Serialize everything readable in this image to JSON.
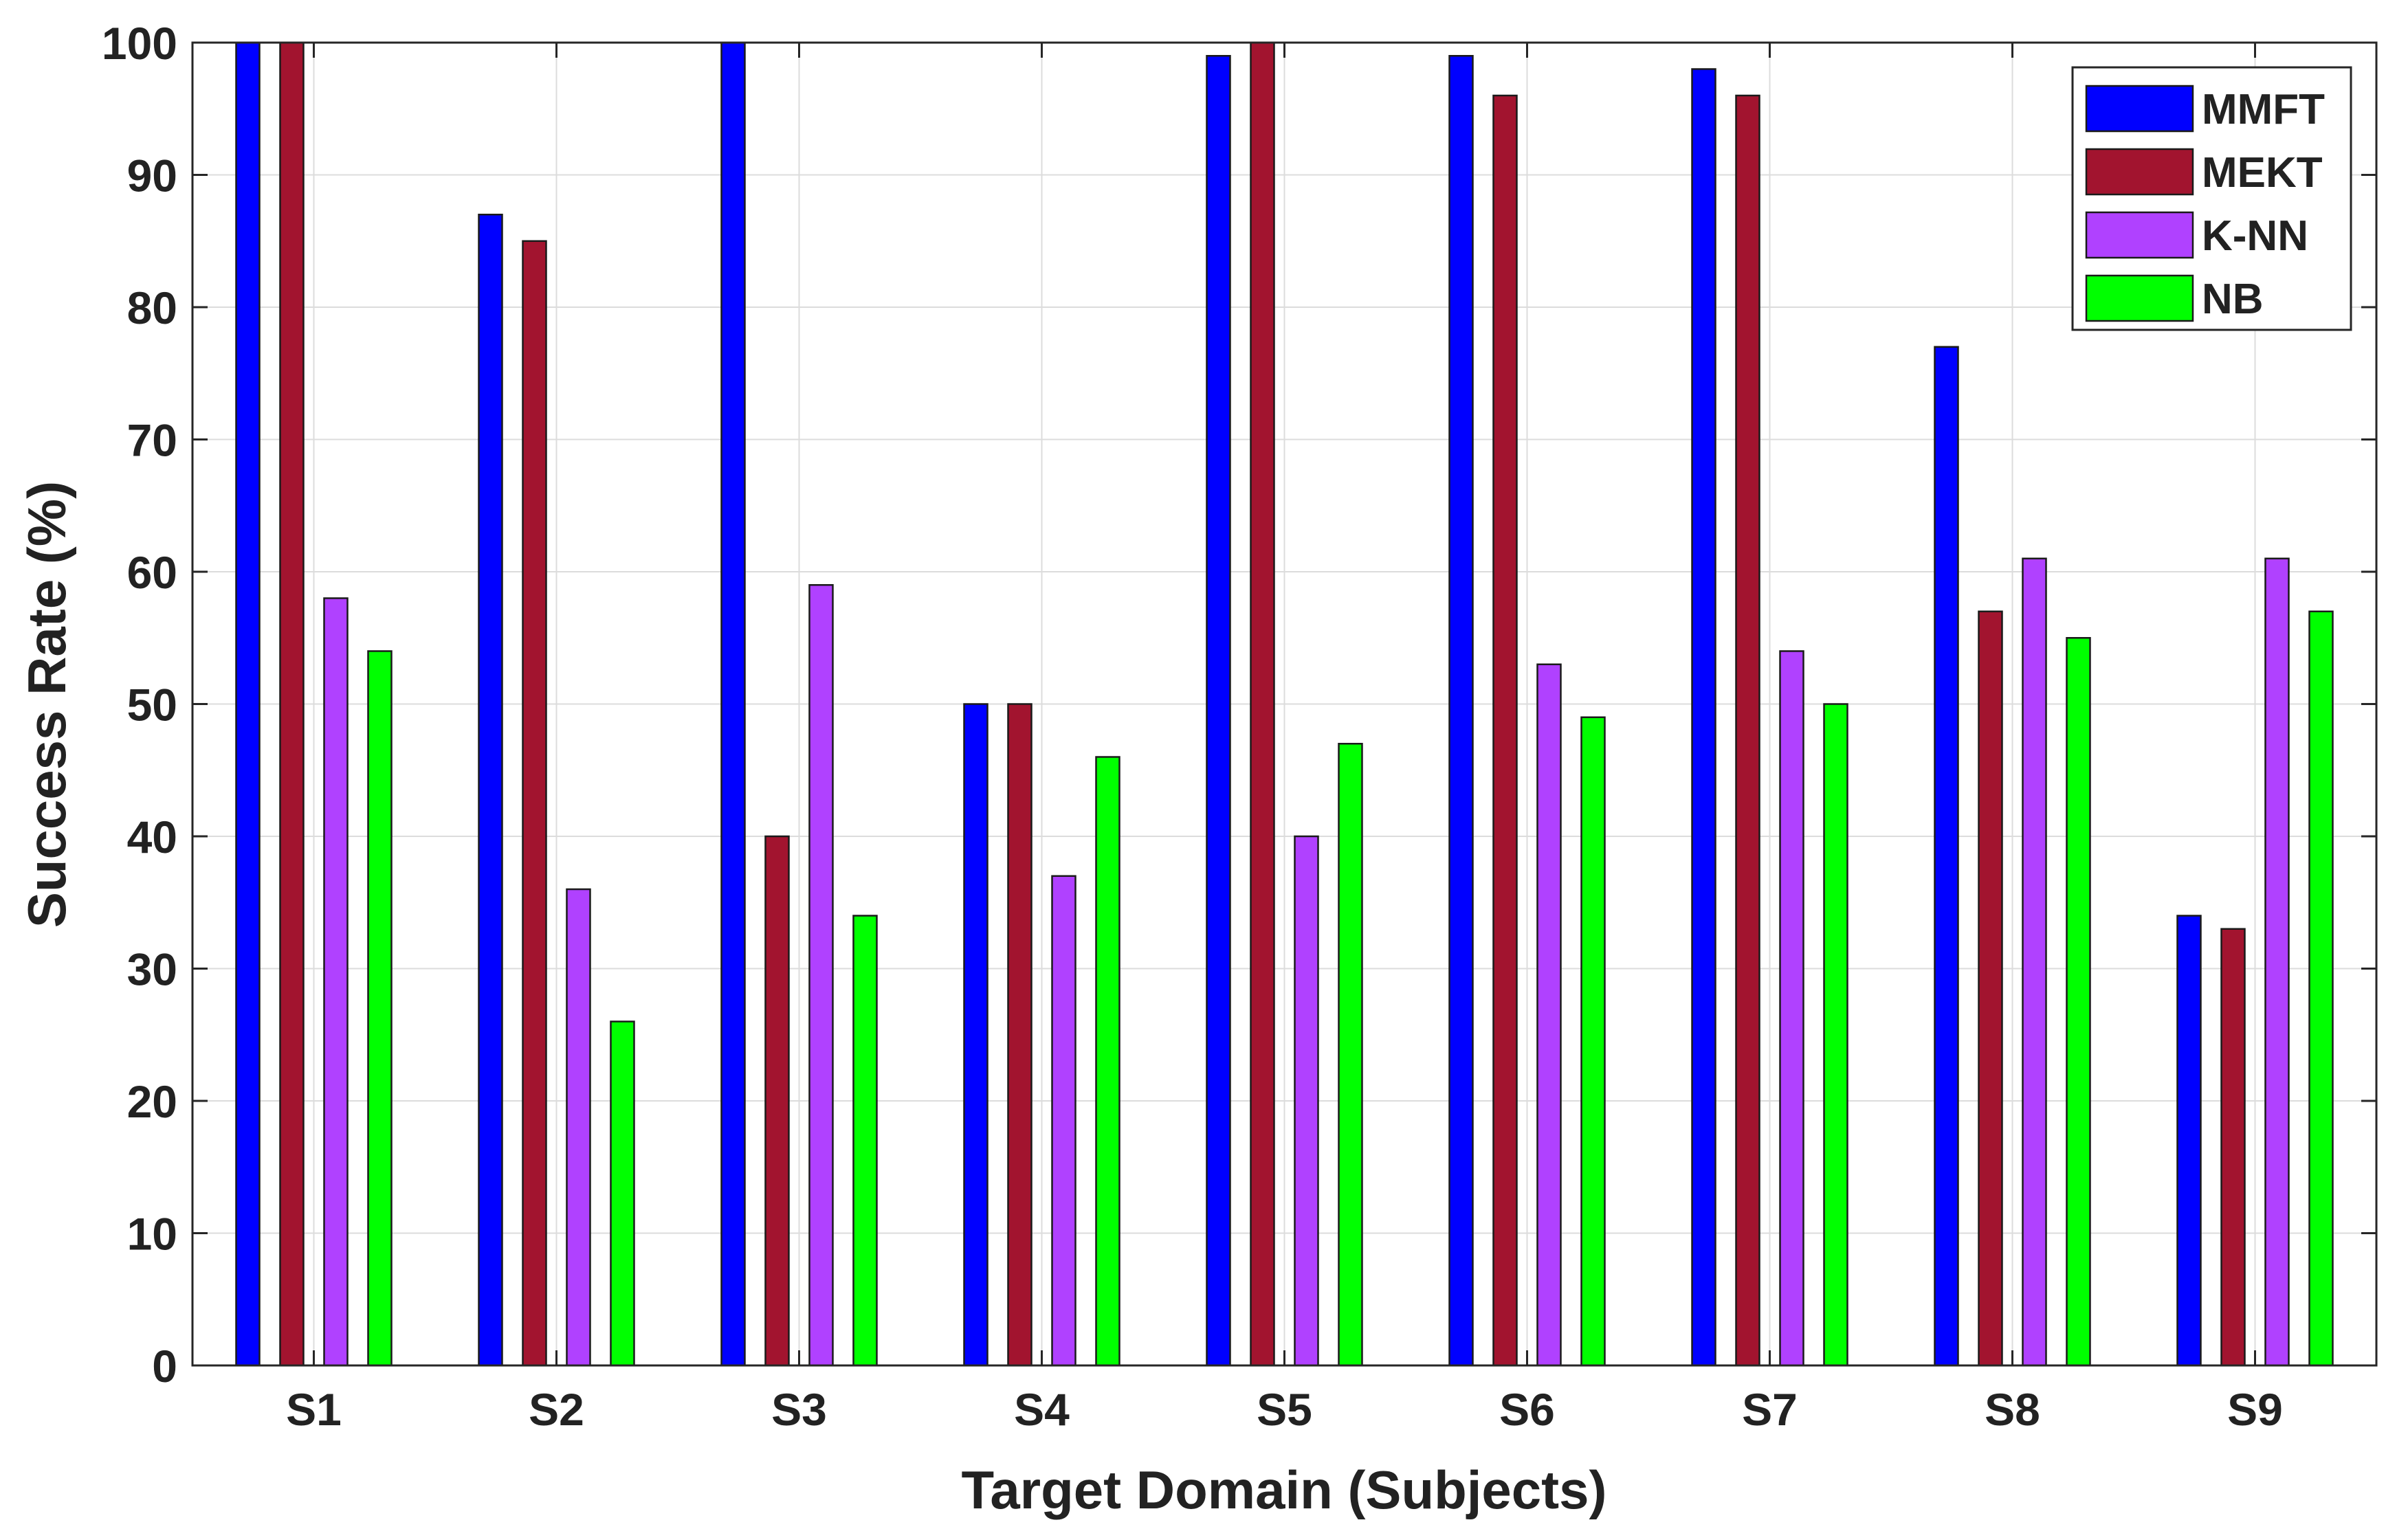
{
  "chart_data": {
    "type": "bar",
    "title": "",
    "xlabel": "Target Domain (Subjects)",
    "ylabel": "Success Rate (%)",
    "ylim": [
      0,
      100
    ],
    "yticks": [
      0,
      10,
      20,
      30,
      40,
      50,
      60,
      70,
      80,
      90,
      100
    ],
    "categories": [
      "S1",
      "S2",
      "S3",
      "S4",
      "S5",
      "S6",
      "S7",
      "S8",
      "S9"
    ],
    "grid": true,
    "legend_position": "top-right",
    "series": [
      {
        "name": "MMFT",
        "color": "#0000ff",
        "values": [
          100,
          87,
          100,
          50,
          99,
          99,
          98,
          77,
          34
        ]
      },
      {
        "name": "MEKT",
        "color": "#a2142f",
        "values": [
          100,
          85,
          40,
          50,
          100,
          96,
          96,
          57,
          33
        ]
      },
      {
        "name": "K-NN",
        "color": "#b041ff",
        "values": [
          58,
          36,
          59,
          37,
          40,
          53,
          54,
          61,
          61
        ]
      },
      {
        "name": "NB",
        "color": "#00ff00",
        "values": [
          54,
          26,
          34,
          46,
          47,
          49,
          50,
          55,
          57
        ]
      }
    ]
  }
}
